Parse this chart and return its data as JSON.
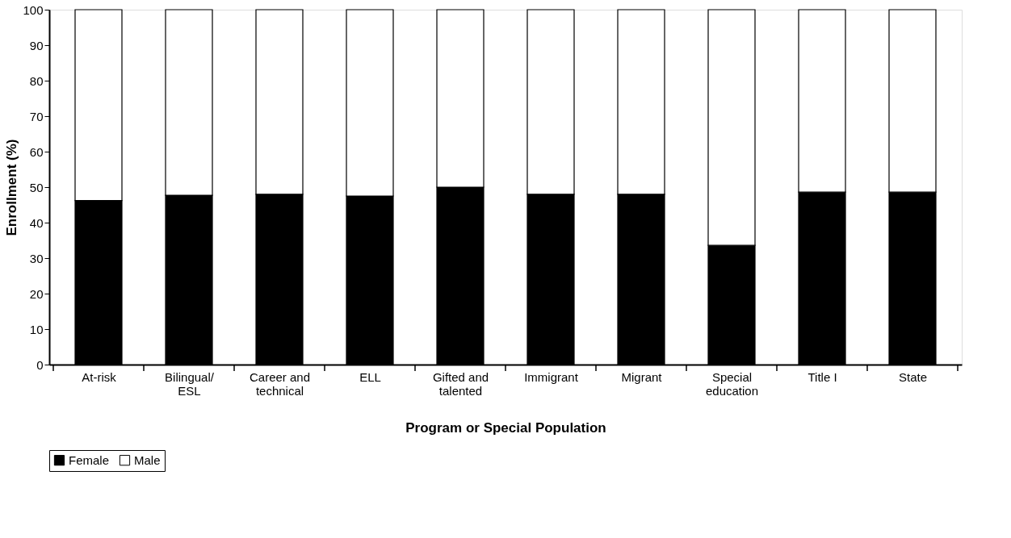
{
  "chart_data": {
    "type": "bar",
    "stacked": true,
    "xlabel": "Program or Special Population",
    "ylabel": "Enrollment (%)",
    "categories": [
      "At-risk",
      "Bilingual/ ESL",
      "Career and technical",
      "ELL",
      "Gifted and talented",
      "Immigrant",
      "Migrant",
      "Special education",
      "Title I",
      "State"
    ],
    "series": [
      {
        "name": "Female",
        "color": "#000000",
        "values": [
          46.2,
          47.7,
          48,
          47.5,
          50,
          48,
          48,
          33.6,
          48.6,
          48.6
        ]
      },
      {
        "name": "Male",
        "color": "#ffffff",
        "values": [
          53.8,
          52.3,
          52,
          52.5,
          50,
          52,
          52,
          66.4,
          51.4,
          51.4
        ]
      }
    ],
    "ylim": [
      0,
      100
    ],
    "yticks": [
      0,
      10,
      20,
      30,
      40,
      50,
      60,
      70,
      80,
      90,
      100
    ],
    "grid": false,
    "legend": "bottom"
  }
}
